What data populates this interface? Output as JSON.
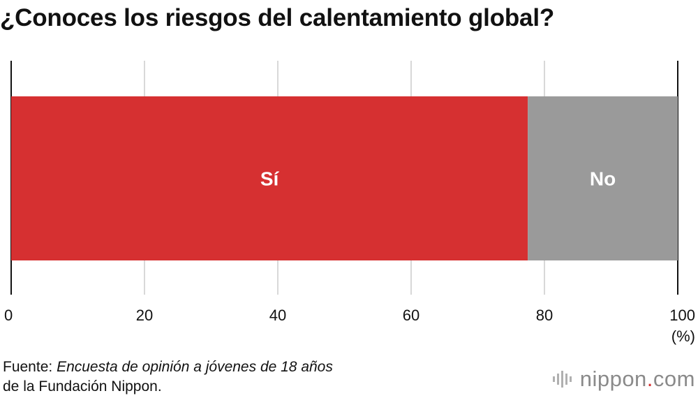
{
  "title": "¿Conoces los riesgos del calentamiento global?",
  "chart_data": {
    "type": "bar",
    "orientation": "horizontal",
    "stacked": true,
    "segments": [
      {
        "name": "Sí",
        "value": 77.5,
        "color": "#d63031"
      },
      {
        "name": "No",
        "value": 22.5,
        "color": "#9a9a9a"
      }
    ],
    "xlim": [
      0,
      100
    ],
    "ticks": [
      "0",
      "20",
      "40",
      "60",
      "80",
      "100"
    ],
    "tick_values": [
      0,
      20,
      40,
      60,
      80,
      100
    ],
    "unit_label": "(%)",
    "grid": true
  },
  "source": {
    "prefix": "Fuente: ",
    "italic": "Encuesta de opinión a jóvenes de 18 años",
    "line2": "de la Fundación Nippon."
  },
  "logo": {
    "name": "nippon",
    "dot": ".",
    "suffix": "com"
  }
}
